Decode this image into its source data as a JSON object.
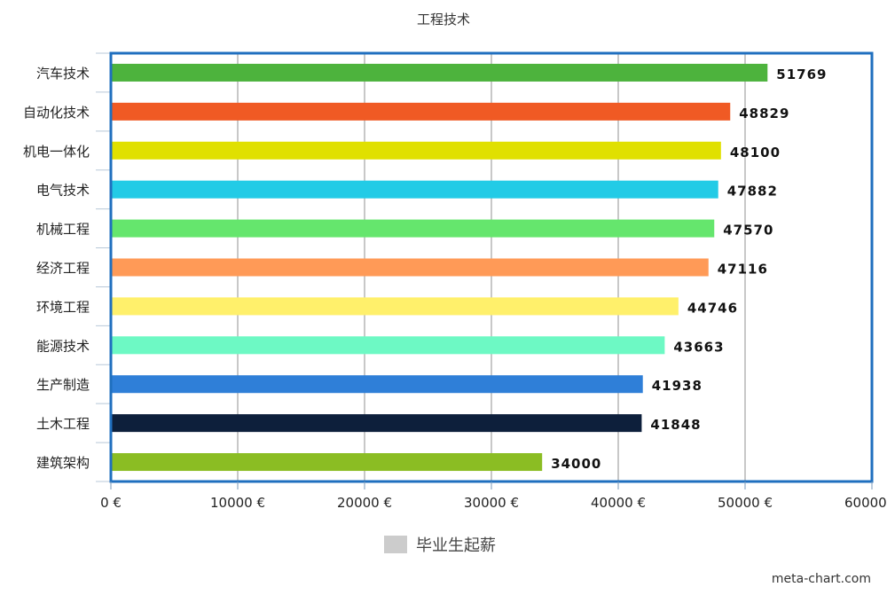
{
  "chart_data": {
    "type": "bar",
    "orientation": "horizontal",
    "title": "工程技术",
    "categories": [
      "汽车技术",
      "自动化技术",
      "机电一体化",
      "电气技术",
      "机械工程",
      "经济工程",
      "环境工程",
      "能源技术",
      "生产制造",
      "土木工程",
      "建筑架构"
    ],
    "series": [
      {
        "name": "毕业生起薪",
        "values": [
          51769,
          48829,
          48100,
          47882,
          47570,
          47116,
          44746,
          43663,
          41938,
          41848,
          34000
        ]
      }
    ],
    "bar_colors": [
      "#4db33d",
      "#f05a24",
      "#e0e000",
      "#22cbe6",
      "#65e66d",
      "#ff9a57",
      "#fff06b",
      "#6df9c4",
      "#2f7fd8",
      "#0d1f3b",
      "#8bbd23"
    ],
    "data_labels": [
      "51769",
      "48829",
      "48100",
      "47882",
      "47570",
      "47116",
      "44746",
      "43663",
      "41938",
      "41848",
      "34000"
    ],
    "x_ticks": [
      0,
      10000,
      20000,
      30000,
      40000,
      50000,
      60000
    ],
    "x_tick_labels": [
      "0 €",
      "10000 €",
      "20000 €",
      "30000 €",
      "40000 €",
      "50000 €",
      "60000 €"
    ],
    "xlim": [
      0,
      60000
    ],
    "grid": true,
    "legend": {
      "position": "bottom",
      "color": "#cccccc"
    },
    "frame_color": "#1f6fbf"
  },
  "credit": "meta-chart.com"
}
